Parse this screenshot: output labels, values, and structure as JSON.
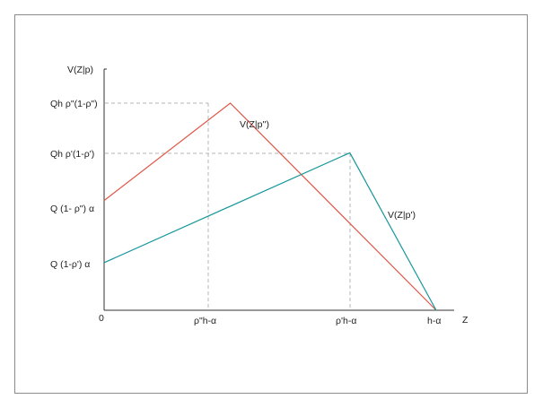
{
  "diagram": {
    "y_axis_label": "V(Z|p)",
    "x_axis_label": "Z",
    "origin_label": "0",
    "y_ticks": {
      "peak_high": "Qh ρ\"(1-ρ\")",
      "peak_low": "Qh ρ'(1-ρ')",
      "start_high": "Q (1- ρ\") α",
      "start_low": "Q (1-ρ') α"
    },
    "x_ticks": {
      "kink_high": "ρ\"h-α",
      "kink_low": "ρ'h-α",
      "end": "h-α"
    },
    "curves": [
      {
        "name": "V(Z|p'')",
        "color": "#e05545",
        "points": [
          [
            0,
            0.53
          ],
          [
            0.38,
            1.0
          ],
          [
            1.0,
            0.0
          ]
        ]
      },
      {
        "name": "V(Z|p')",
        "color": "#16969c",
        "points": [
          [
            0,
            0.23
          ],
          [
            0.74,
            0.76
          ],
          [
            1.0,
            0.0
          ]
        ]
      }
    ],
    "colors": {
      "axis": "#333333",
      "guides": "#b5b5b5",
      "border": "#8a8a8a"
    }
  }
}
